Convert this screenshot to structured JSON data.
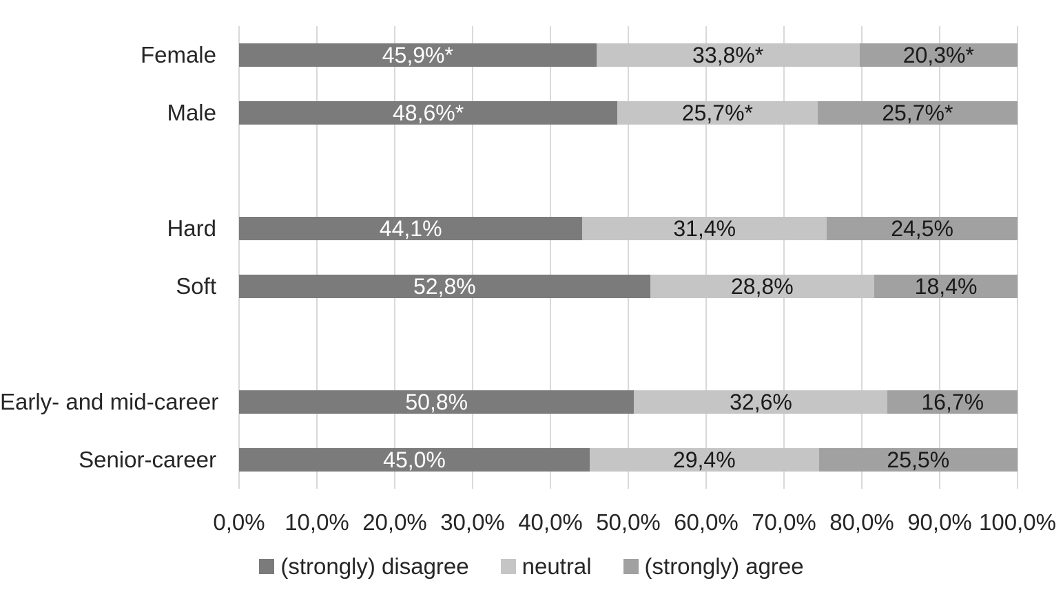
{
  "chart_data": {
    "type": "bar",
    "orientation": "horizontal",
    "stacked": true,
    "unit": "percent",
    "decimal_separator": ",",
    "categories": [
      "Female",
      "Male",
      "",
      "Hard",
      "Soft",
      "",
      "Early- and mid-career",
      "Senior-career"
    ],
    "series": [
      {
        "name": "(strongly) disagree",
        "color": "#7B7B7B",
        "label_color": "#FFFFFF",
        "values": [
          45.9,
          48.6,
          null,
          44.1,
          52.8,
          null,
          50.8,
          45.0
        ],
        "labels": [
          "45,9%*",
          "48,6%*",
          "",
          "44,1%",
          "52,8%",
          "",
          "50,8%",
          "45,0%"
        ]
      },
      {
        "name": "neutral",
        "color": "#C5C5C5",
        "label_color": "#1A1A1A",
        "values": [
          33.8,
          25.7,
          null,
          31.4,
          28.8,
          null,
          32.6,
          29.4
        ],
        "labels": [
          "33,8%*",
          "25,7%*",
          "",
          "31,4%",
          "28,8%",
          "",
          "32,6%",
          "29,4%"
        ]
      },
      {
        "name": "(strongly) agree",
        "color": "#A1A1A1",
        "label_color": "#1A1A1A",
        "values": [
          20.3,
          25.7,
          null,
          24.5,
          18.4,
          null,
          16.7,
          25.5
        ],
        "labels": [
          "20,3%*",
          "25,7%*",
          "",
          "24,5%",
          "18,4%",
          "",
          "16,7%",
          "25,5%"
        ]
      }
    ],
    "x_ticks": [
      "0,0%",
      "10,0%",
      "20,0%",
      "30,0%",
      "40,0%",
      "50,0%",
      "60,0%",
      "70,0%",
      "80,0%",
      "90,0%",
      "100,0%"
    ],
    "xlim": [
      0,
      100
    ],
    "grid": true,
    "legend_position": "bottom",
    "colors": {
      "gridline": "#D9D9D9",
      "background": "#FFFFFF",
      "text": "#262626"
    }
  }
}
